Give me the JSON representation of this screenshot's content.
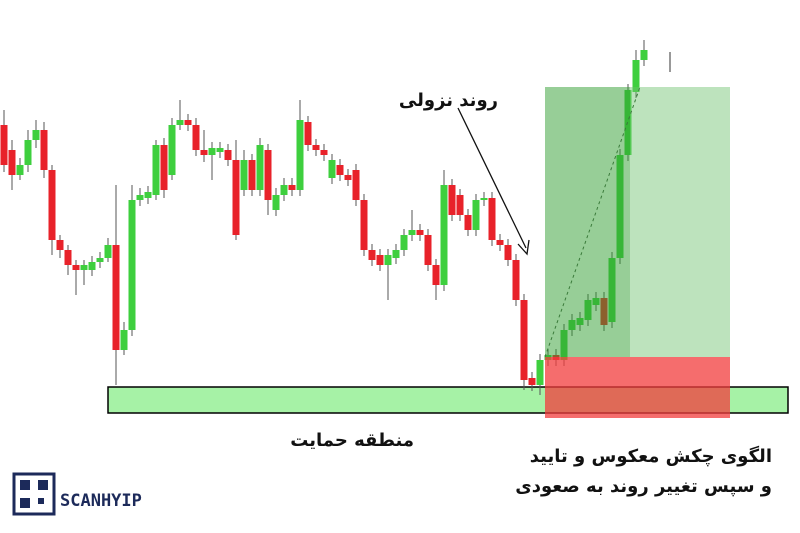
{
  "chart_data": {
    "type": "candlestick",
    "ylim": [
      113,
      493
    ],
    "up_color": "#3ecf3e",
    "down_color": "#e8222a",
    "ohlc": [
      [
        408,
        423,
        361,
        368
      ],
      [
        383,
        393,
        343,
        358
      ],
      [
        358,
        375,
        353,
        368
      ],
      [
        368,
        403,
        361,
        393
      ],
      [
        393,
        413,
        385,
        403
      ],
      [
        403,
        411,
        355,
        363
      ],
      [
        363,
        368,
        278,
        293
      ],
      [
        293,
        298,
        275,
        283
      ],
      [
        283,
        288,
        258,
        268
      ],
      [
        268,
        273,
        238,
        263
      ],
      [
        263,
        273,
        248,
        268
      ],
      [
        263,
        277,
        257,
        271
      ],
      [
        271,
        281,
        265,
        275
      ],
      [
        275,
        295,
        271,
        288
      ],
      [
        288,
        348,
        148,
        183
      ],
      [
        183,
        211,
        178,
        203
      ],
      [
        203,
        348,
        197,
        333
      ],
      [
        333,
        345,
        327,
        338
      ],
      [
        335,
        347,
        329,
        341
      ],
      [
        338,
        393,
        333,
        388
      ],
      [
        388,
        395,
        335,
        343
      ],
      [
        358,
        415,
        353,
        408
      ],
      [
        408,
        433,
        403,
        413
      ],
      [
        413,
        419,
        402,
        408
      ],
      [
        408,
        415,
        377,
        383
      ],
      [
        383,
        403,
        371,
        378
      ],
      [
        378,
        391,
        353,
        385
      ],
      [
        381,
        391,
        375,
        385
      ],
      [
        383,
        389,
        367,
        373
      ],
      [
        373,
        393,
        293,
        298
      ],
      [
        343,
        383,
        337,
        373
      ],
      [
        373,
        379,
        337,
        343
      ],
      [
        343,
        395,
        337,
        388
      ],
      [
        383,
        389,
        318,
        333
      ],
      [
        323,
        345,
        317,
        338
      ],
      [
        338,
        355,
        332,
        348
      ],
      [
        348,
        355,
        337,
        343
      ],
      [
        343,
        433,
        337,
        413
      ],
      [
        411,
        417,
        382,
        388
      ],
      [
        388,
        394,
        377,
        383
      ],
      [
        383,
        389,
        372,
        378
      ],
      [
        355,
        379,
        349,
        373
      ],
      [
        368,
        374,
        352,
        358
      ],
      [
        358,
        364,
        347,
        353
      ],
      [
        363,
        369,
        327,
        333
      ],
      [
        333,
        339,
        277,
        283
      ],
      [
        283,
        289,
        267,
        273
      ],
      [
        278,
        284,
        262,
        268
      ],
      [
        268,
        284,
        233,
        278
      ],
      [
        275,
        289,
        269,
        283
      ],
      [
        283,
        304,
        277,
        298
      ],
      [
        298,
        323,
        292,
        303
      ],
      [
        303,
        309,
        292,
        298
      ],
      [
        298,
        304,
        262,
        268
      ],
      [
        268,
        274,
        233,
        248
      ],
      [
        248,
        363,
        242,
        348
      ],
      [
        348,
        354,
        312,
        318
      ],
      [
        338,
        344,
        312,
        318
      ],
      [
        318,
        324,
        297,
        303
      ],
      [
        303,
        339,
        297,
        333
      ],
      [
        333,
        341,
        327,
        335
      ],
      [
        335,
        341,
        287,
        293
      ],
      [
        293,
        299,
        282,
        288
      ],
      [
        288,
        294,
        267,
        273
      ],
      [
        273,
        279,
        227,
        233
      ],
      [
        233,
        239,
        143,
        153
      ],
      [
        155,
        161,
        142,
        148
      ],
      [
        148,
        179,
        138,
        173
      ],
      [
        173,
        184,
        167,
        178
      ],
      [
        178,
        184,
        167,
        173
      ],
      [
        173,
        209,
        167,
        203
      ],
      [
        203,
        219,
        197,
        213
      ],
      [
        208,
        221,
        202,
        215
      ],
      [
        213,
        239,
        207,
        233
      ],
      [
        228,
        241,
        222,
        235
      ],
      [
        235,
        241,
        202,
        208
      ],
      [
        211,
        281,
        205,
        275
      ],
      [
        275,
        384,
        269,
        378
      ],
      [
        378,
        449,
        372,
        443
      ],
      [
        441,
        483,
        435,
        473
      ],
      [
        473,
        493,
        467,
        483
      ]
    ],
    "annotations": [
      "روند نزولی",
      "منطقه حمایت",
      "الگوی چکش معکوس و تایید",
      "و سپس تغییر روند به صعودی"
    ]
  },
  "logo": "SCANHYIP"
}
